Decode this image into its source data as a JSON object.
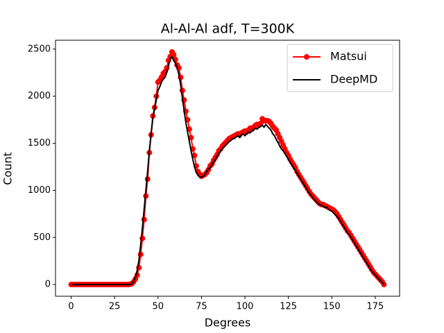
{
  "chart_data": {
    "type": "line",
    "title": "Al-Al-Al adf, T=300K",
    "xlabel": "Degrees",
    "ylabel": "Count",
    "x": [
      0,
      1,
      2,
      3,
      4,
      5,
      6,
      7,
      8,
      9,
      10,
      11,
      12,
      13,
      14,
      15,
      16,
      17,
      18,
      19,
      20,
      21,
      22,
      23,
      24,
      25,
      26,
      27,
      28,
      29,
      30,
      31,
      32,
      33,
      34,
      35,
      36,
      37,
      38,
      39,
      40,
      41,
      42,
      43,
      44,
      45,
      46,
      47,
      48,
      49,
      50,
      51,
      52,
      53,
      54,
      55,
      56,
      57,
      58,
      59,
      60,
      61,
      62,
      63,
      64,
      65,
      66,
      67,
      68,
      69,
      70,
      71,
      72,
      73,
      74,
      75,
      76,
      77,
      78,
      79,
      80,
      81,
      82,
      83,
      84,
      85,
      86,
      87,
      88,
      89,
      90,
      91,
      92,
      93,
      94,
      95,
      96,
      97,
      98,
      99,
      100,
      101,
      102,
      103,
      104,
      105,
      106,
      107,
      108,
      109,
      110,
      111,
      112,
      113,
      114,
      115,
      116,
      117,
      118,
      119,
      120,
      121,
      122,
      123,
      124,
      125,
      126,
      127,
      128,
      129,
      130,
      131,
      132,
      133,
      134,
      135,
      136,
      137,
      138,
      139,
      140,
      141,
      142,
      143,
      144,
      145,
      146,
      147,
      148,
      149,
      150,
      151,
      152,
      153,
      154,
      155,
      156,
      157,
      158,
      159,
      160,
      161,
      162,
      163,
      164,
      165,
      166,
      167,
      168,
      169,
      170,
      171,
      172,
      173,
      174,
      175,
      176,
      177,
      178,
      179,
      180
    ],
    "series": [
      {
        "name": "Matsui",
        "color": "#ff0000",
        "marker": "o",
        "values": [
          0,
          0,
          0,
          0,
          0,
          0,
          0,
          0,
          0,
          0,
          0,
          0,
          0,
          0,
          0,
          0,
          0,
          0,
          0,
          0,
          0,
          0,
          0,
          0,
          0,
          0,
          0,
          0,
          0,
          0,
          0,
          0,
          0,
          0,
          5,
          10,
          30,
          60,
          100,
          180,
          320,
          490,
          690,
          940,
          1120,
          1400,
          1590,
          1790,
          1880,
          2000,
          2150,
          2170,
          2200,
          2240,
          2260,
          2300,
          2380,
          2420,
          2470,
          2440,
          2390,
          2330,
          2300,
          2200,
          2060,
          1960,
          1840,
          1750,
          1650,
          1560,
          1440,
          1370,
          1260,
          1200,
          1170,
          1150,
          1160,
          1170,
          1190,
          1220,
          1260,
          1280,
          1320,
          1350,
          1380,
          1420,
          1440,
          1470,
          1490,
          1510,
          1530,
          1550,
          1560,
          1570,
          1580,
          1590,
          1600,
          1590,
          1610,
          1620,
          1630,
          1620,
          1640,
          1660,
          1650,
          1670,
          1690,
          1700,
          1690,
          1710,
          1760,
          1740,
          1740,
          1740,
          1730,
          1710,
          1680,
          1660,
          1640,
          1600,
          1560,
          1520,
          1480,
          1440,
          1400,
          1370,
          1330,
          1300,
          1270,
          1240,
          1200,
          1170,
          1140,
          1110,
          1080,
          1050,
          1020,
          990,
          960,
          940,
          920,
          900,
          880,
          860,
          850,
          850,
          840,
          830,
          820,
          810,
          800,
          790,
          770,
          750,
          720,
          690,
          660,
          630,
          600,
          570,
          550,
          520,
          490,
          460,
          430,
          400,
          370,
          340,
          310,
          280,
          250,
          220,
          190,
          160,
          130,
          110,
          90,
          70,
          50,
          30,
          0
        ]
      },
      {
        "name": "DeepMD",
        "color": "#000000",
        "values": [
          0,
          0,
          0,
          0,
          0,
          0,
          0,
          0,
          0,
          0,
          0,
          0,
          0,
          0,
          0,
          0,
          0,
          0,
          0,
          0,
          0,
          0,
          0,
          0,
          0,
          0,
          0,
          0,
          0,
          0,
          0,
          0,
          0,
          0,
          0,
          10,
          40,
          80,
          150,
          260,
          420,
          600,
          800,
          1000,
          1200,
          1420,
          1600,
          1760,
          1860,
          1960,
          2060,
          2100,
          2150,
          2180,
          2200,
          2250,
          2320,
          2400,
          2420,
          2380,
          2350,
          2300,
          2230,
          2120,
          1980,
          1850,
          1720,
          1620,
          1520,
          1420,
          1330,
          1250,
          1190,
          1160,
          1140,
          1140,
          1150,
          1170,
          1200,
          1230,
          1240,
          1270,
          1300,
          1330,
          1360,
          1390,
          1420,
          1440,
          1460,
          1480,
          1500,
          1520,
          1530,
          1550,
          1550,
          1570,
          1580,
          1560,
          1590,
          1600,
          1580,
          1600,
          1620,
          1610,
          1630,
          1640,
          1660,
          1650,
          1670,
          1680,
          1690,
          1670,
          1700,
          1680,
          1660,
          1640,
          1600,
          1580,
          1540,
          1510,
          1470,
          1440,
          1420,
          1390,
          1360,
          1330,
          1300,
          1270,
          1240,
          1210,
          1180,
          1150,
          1120,
          1090,
          1060,
          1030,
          1000,
          970,
          950,
          920,
          900,
          880,
          860,
          850,
          840,
          830,
          820,
          820,
          800,
          790,
          780,
          760,
          740,
          720,
          700,
          670,
          640,
          610,
          580,
          550,
          530,
          500,
          470,
          440,
          410,
          380,
          350,
          320,
          290,
          260,
          230,
          200,
          170,
          140,
          120,
          100,
          80,
          60,
          40,
          20,
          0
        ]
      }
    ],
    "xlim": [
      -9,
      189
    ],
    "ylim": [
      -124,
      2594
    ],
    "xticks": [
      0,
      25,
      50,
      75,
      100,
      125,
      150,
      175
    ],
    "yticks": [
      0,
      500,
      1000,
      1500,
      2000,
      2500
    ],
    "legend": "upper right"
  }
}
